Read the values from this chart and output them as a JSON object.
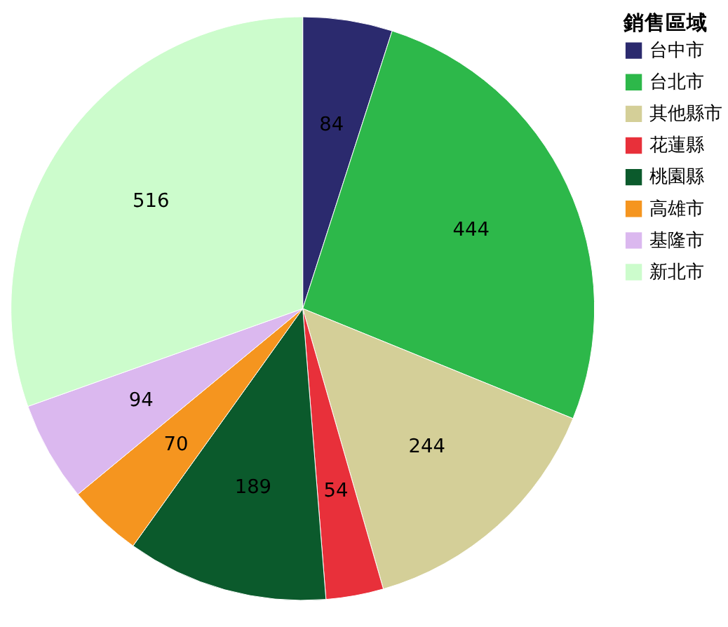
{
  "chart_data": {
    "type": "pie",
    "legend_title": "銷售區域",
    "legend": "top right",
    "data_labels": true,
    "categories": [
      "台中市",
      "台北市",
      "其他縣市",
      "花蓮縣",
      "桃園縣",
      "高雄市",
      "基隆市",
      "新北市"
    ],
    "values": [
      84,
      444,
      244,
      54,
      189,
      70,
      94,
      516
    ],
    "colors": [
      "#2b2a6e",
      "#2db84a",
      "#d4cf98",
      "#e8303a",
      "#0b5a2c",
      "#f5951f",
      "#dbb8ef",
      "#ccfccc"
    ]
  }
}
